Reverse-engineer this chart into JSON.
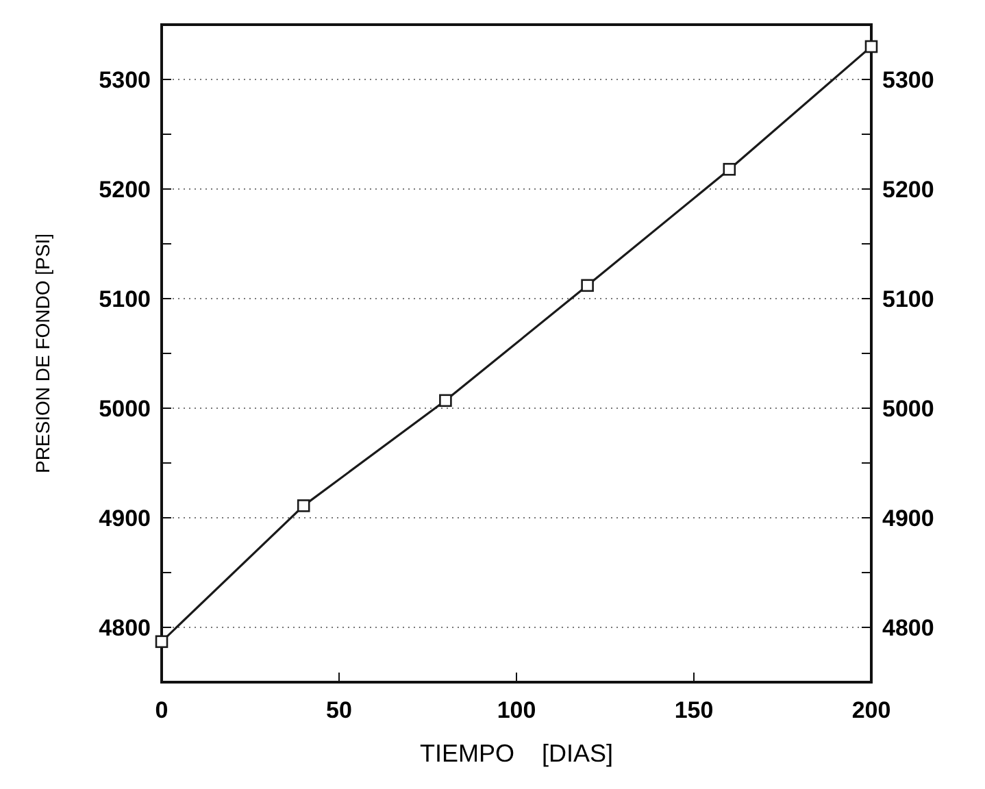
{
  "chart_data": {
    "type": "line",
    "xlabel": "TIEMPO    [DIAS]",
    "ylabel": "PRESION DE FONDO [PSI]",
    "x": [
      0,
      40,
      80,
      120,
      160,
      200
    ],
    "series": [
      {
        "color": "#1a1a1a",
        "values": [
          4787,
          4911,
          5007,
          5112,
          5218,
          5330
        ]
      }
    ],
    "xlim": [
      0,
      200
    ],
    "xticks": [
      0,
      50,
      100,
      150,
      200
    ],
    "ylim": [
      4750,
      5350
    ],
    "yticks": [
      4800,
      {
        "value": 4850,
        "label": null
      },
      4900,
      {
        "value": 4950,
        "label": null
      },
      5000,
      {
        "value": 5050,
        "label": null
      },
      5100,
      {
        "value": 5150,
        "label": null
      },
      5200,
      {
        "value": 5250,
        "label": null
      },
      5300
    ],
    "y2lim": [
      4750,
      5350
    ],
    "y2ticks": [
      4800,
      {
        "value": 4850,
        "label": null
      },
      4900,
      {
        "value": 4950,
        "label": null
      },
      5000,
      {
        "value": 5050,
        "label": null
      },
      5100,
      {
        "value": 5150,
        "label": null
      },
      5200,
      {
        "value": 5250,
        "label": null
      },
      5300
    ],
    "grid": "y",
    "marker": "square",
    "line_style": "solid"
  }
}
